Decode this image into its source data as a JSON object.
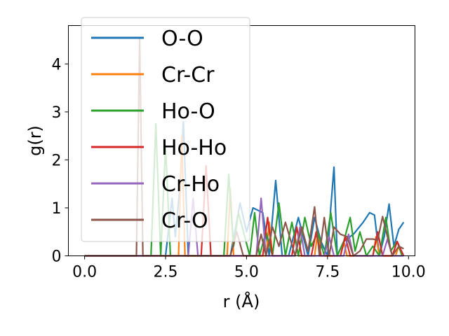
{
  "chart_data": {
    "type": "line",
    "xlabel": "r (Å)",
    "ylabel": "g(r)",
    "xlim": [
      -0.5,
      10.2
    ],
    "ylim": [
      0,
      4.8
    ],
    "xticks": [
      0.0,
      2.5,
      5.0,
      7.5,
      10.0
    ],
    "xtick_labels": [
      "0.0",
      "2.5",
      "5.0",
      "7.5",
      "10.0"
    ],
    "yticks": [
      0,
      1,
      2,
      3,
      4
    ],
    "ytick_labels": [
      "0",
      "1",
      "2",
      "3",
      "4"
    ],
    "grid": false,
    "legend_placement": "top-left",
    "series": [
      {
        "name": "O-O",
        "color": "#1f77b4",
        "x": [
          0.0,
          2.5,
          2.7,
          2.8,
          2.95,
          3.05,
          3.2,
          3.6,
          4.0,
          4.5,
          4.8,
          5.0,
          5.2,
          5.5,
          5.7,
          5.9,
          6.1,
          6.3,
          6.6,
          6.9,
          7.1,
          7.3,
          7.5,
          7.6,
          7.7,
          7.8,
          8.0,
          8.3,
          8.6,
          8.8,
          8.95,
          9.1,
          9.25,
          9.4,
          9.55,
          9.7,
          9.85
        ],
        "values": [
          0,
          0,
          1.2,
          0.4,
          1.5,
          2.8,
          0,
          0,
          0,
          0,
          1.1,
          0.5,
          1.0,
          0.9,
          0.0,
          1.57,
          0.0,
          0.0,
          0.8,
          0.0,
          0.8,
          0.3,
          0.0,
          1.0,
          1.85,
          0.0,
          0.3,
          0.45,
          0.7,
          0.9,
          0.85,
          0.0,
          0.4,
          1.08,
          0.2,
          0.55,
          0.7
        ]
      },
      {
        "name": "Cr-Cr",
        "color": "#ff7f0e",
        "x": [
          0.0,
          2.9,
          3.0,
          3.1,
          4.4,
          4.5,
          4.6,
          5.6,
          5.7,
          5.8,
          6.4,
          6.5,
          6.6,
          7.1,
          7.2,
          7.3,
          7.9,
          8.0,
          8.1,
          8.9,
          9.0,
          9.1,
          9.6,
          9.7,
          9.85
        ],
        "values": [
          0,
          0,
          2.5,
          0,
          0,
          1.4,
          0,
          0,
          0.7,
          0,
          0,
          0.4,
          0,
          0,
          0.5,
          0,
          0,
          0.3,
          0,
          0,
          0.4,
          0,
          0,
          0.2,
          0
        ]
      },
      {
        "name": "Ho-O",
        "color": "#2ca02c",
        "x": [
          0.0,
          2.05,
          2.2,
          2.35,
          2.5,
          2.65,
          3.6,
          4.3,
          4.45,
          4.6,
          4.75,
          5.1,
          5.25,
          5.4,
          5.6,
          5.8,
          6.0,
          6.2,
          6.4,
          6.6,
          6.8,
          7.0,
          7.2,
          7.4,
          7.6,
          7.8,
          8.0,
          8.2,
          8.35,
          8.5,
          8.7,
          8.9,
          9.1,
          9.3,
          9.45,
          9.65,
          9.8
        ],
        "values": [
          0,
          0,
          2.75,
          0,
          2.3,
          0,
          0,
          0,
          1.7,
          0.2,
          0.9,
          0,
          0.9,
          0,
          0.5,
          0,
          1.1,
          0,
          0.7,
          0,
          0.8,
          0.2,
          0.5,
          0,
          0.9,
          0,
          0.3,
          0.8,
          0.1,
          0.5,
          0,
          0.2,
          0,
          0.8,
          0.1,
          0.3,
          0
        ]
      },
      {
        "name": "Ho-Ho",
        "color": "#d62728",
        "x": [
          0.0,
          3.6,
          3.75,
          3.9,
          5.5,
          5.65,
          5.8,
          6.4,
          6.55,
          6.7,
          7.0,
          7.15,
          7.3,
          7.9,
          8.05,
          8.2,
          8.9,
          9.05,
          9.2,
          9.5,
          9.65,
          9.85
        ],
        "values": [
          0,
          0,
          1.88,
          0,
          0,
          0.8,
          0,
          0,
          0.6,
          0,
          0,
          0.5,
          0,
          0,
          0.4,
          0,
          0,
          0.5,
          0,
          0,
          0.3,
          0
        ]
      },
      {
        "name": "Cr-Ho",
        "color": "#9467bd",
        "x": [
          0.0,
          3.2,
          3.35,
          3.5,
          5.3,
          5.45,
          5.6,
          6.5,
          6.65,
          6.8,
          7.4,
          7.55,
          7.7,
          8.0,
          8.15,
          8.3,
          9.2,
          9.35,
          9.5,
          9.85
        ],
        "values": [
          0,
          0,
          1.2,
          0,
          0,
          1.2,
          0,
          0,
          0.6,
          0,
          0,
          0.4,
          0,
          0,
          0.45,
          0,
          0,
          0.35,
          0,
          0
        ]
      },
      {
        "name": "Cr-O",
        "color": "#8c564b",
        "x": [
          0.0,
          1.6,
          1.7,
          1.8,
          4.5,
          4.7,
          4.9,
          5.3,
          5.45,
          5.6,
          5.8,
          6.0,
          6.2,
          6.5,
          6.7,
          6.9,
          7.1,
          7.25,
          7.4,
          7.55,
          7.7,
          7.9,
          8.1,
          8.3,
          8.5,
          8.7,
          8.9,
          9.05,
          9.2,
          9.35,
          9.5,
          9.7,
          9.85
        ],
        "values": [
          0,
          0,
          4.55,
          0,
          0,
          0.5,
          0,
          0,
          0.45,
          0,
          0.6,
          0.2,
          0.7,
          0,
          0.6,
          0.1,
          1.02,
          0,
          0.8,
          0,
          0.6,
          0.45,
          0.4,
          0,
          0.1,
          0.35,
          0.35,
          0.33,
          0.82,
          0.4,
          0,
          0.2,
          0.15
        ]
      }
    ]
  }
}
